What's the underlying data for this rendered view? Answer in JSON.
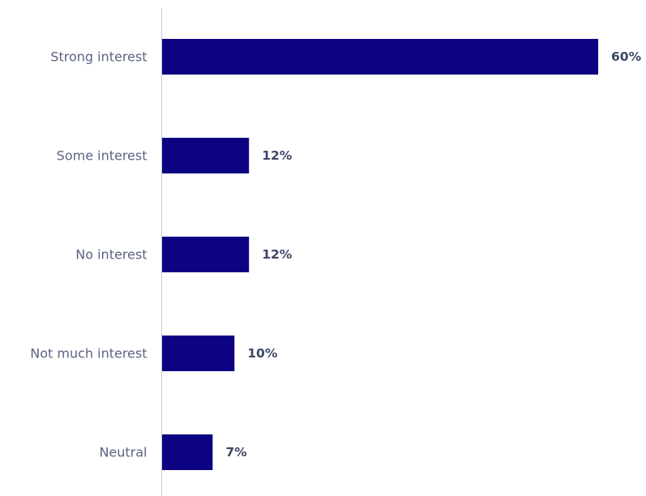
{
  "chart_data": {
    "type": "bar",
    "orientation": "horizontal",
    "categories": [
      "Strong interest",
      "Some interest",
      "No interest",
      "Not much interest",
      "Neutral"
    ],
    "values": [
      60,
      12,
      12,
      10,
      7
    ],
    "value_labels": [
      "60%",
      "12%",
      "12%",
      "10%",
      "7%"
    ],
    "unit": "%",
    "xlim": [
      0,
      60
    ],
    "grid": false,
    "legend": "none",
    "bar_color": "#0d0382",
    "label_color": "#5b6381",
    "value_label_color": "#3f4768",
    "axis_color": "#c9ccd6"
  }
}
